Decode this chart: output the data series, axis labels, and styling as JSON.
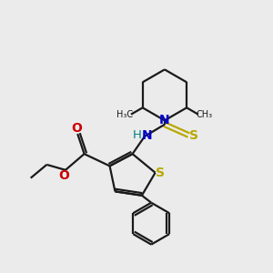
{
  "bg_color": "#ebebeb",
  "bond_color": "#1a1a1a",
  "S_color": "#b8a800",
  "N_color": "#0000cc",
  "N_NH_color": "#008080",
  "O_color": "#cc0000",
  "line_width": 1.6,
  "figsize": [
    3.0,
    3.0
  ],
  "dpi": 100,
  "xlim": [
    0,
    10
  ],
  "ylim": [
    0,
    10
  ]
}
